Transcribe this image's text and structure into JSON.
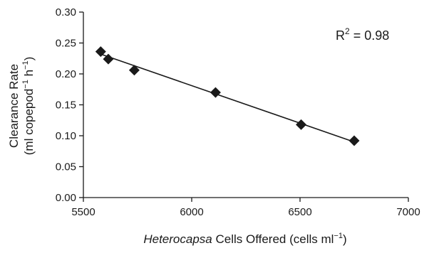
{
  "chart_data": {
    "type": "scatter",
    "title": "",
    "xlabel": {
      "italic": "Heterocapsa",
      "text": " Cells Offered (cells ml",
      "sup": "−1",
      "close": ")"
    },
    "ylabel": {
      "line1": "Clearance Rate",
      "line2_text": "(ml copepod",
      "line2_sup1": "−1",
      "line2_mid": " h",
      "line2_sup2": "−1",
      "line2_close": ")"
    },
    "xlim": [
      5500,
      7000
    ],
    "ylim": [
      0.0,
      0.3
    ],
    "x_ticks": [
      "5500",
      "6000",
      "6500",
      "7000"
    ],
    "x_tick_values": [
      5500,
      6000,
      6500,
      7000
    ],
    "y_ticks": [
      "0.00",
      "0.05",
      "0.10",
      "0.15",
      "0.20",
      "0.25",
      "0.30"
    ],
    "y_tick_values": [
      0.0,
      0.05,
      0.1,
      0.15,
      0.2,
      0.25,
      0.3
    ],
    "grid": false,
    "legend": "none",
    "marker": "diamond",
    "marker_color": "#1a1a1a",
    "points": [
      {
        "x": 5580,
        "y": 0.236
      },
      {
        "x": 5615,
        "y": 0.224
      },
      {
        "x": 5735,
        "y": 0.206
      },
      {
        "x": 6110,
        "y": 0.17
      },
      {
        "x": 6505,
        "y": 0.118
      },
      {
        "x": 6750,
        "y": 0.092
      }
    ],
    "trendline": {
      "type": "linear",
      "x_start": 5580,
      "y_start": 0.232,
      "x_end": 6750,
      "y_end": 0.09
    },
    "annotation": {
      "prefix": "R",
      "sup": "2",
      "suffix": " = 0.98"
    }
  }
}
